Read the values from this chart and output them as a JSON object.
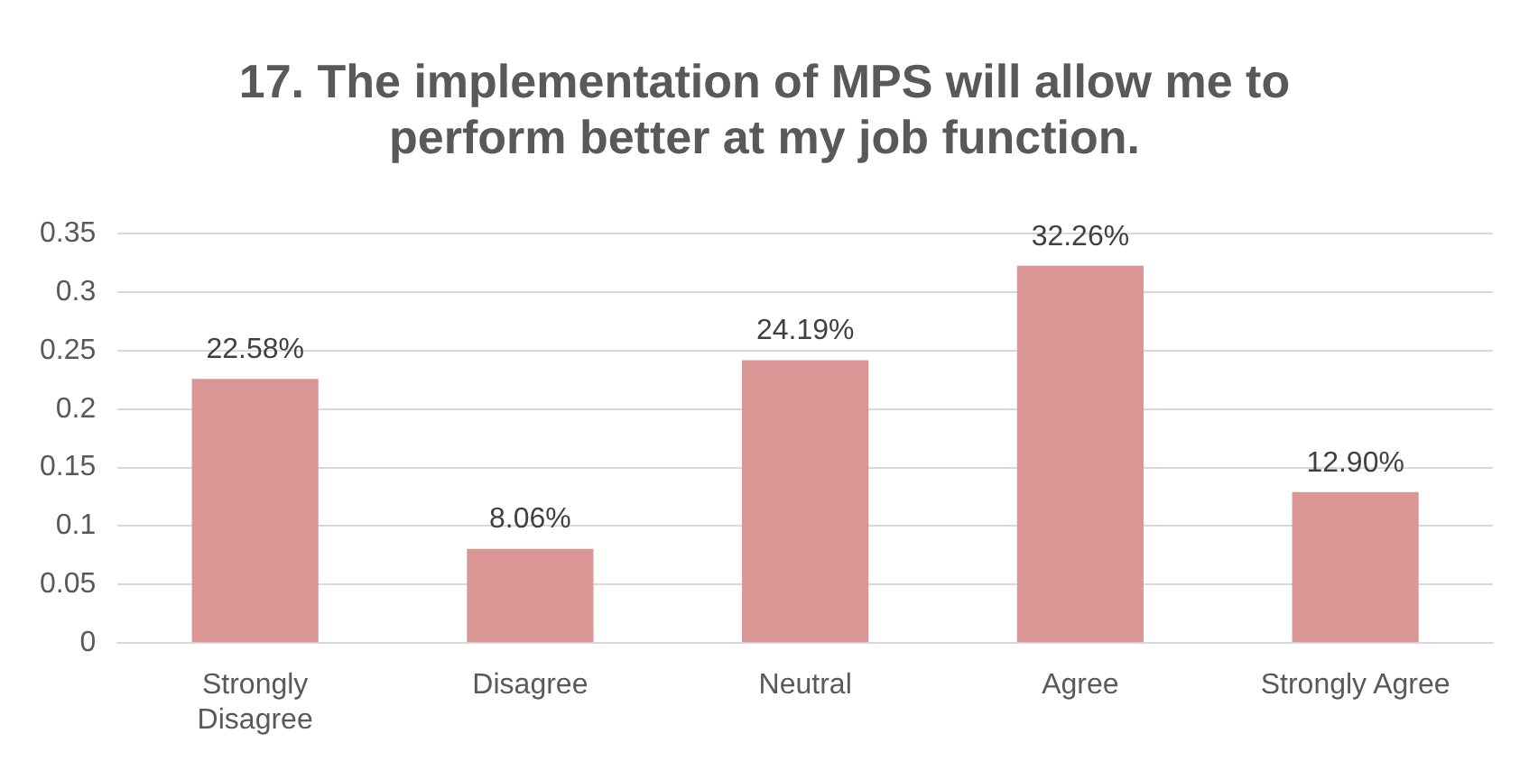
{
  "chart_data": {
    "type": "bar",
    "title": "17. The implementation of MPS will allow me to perform better at my job function.",
    "categories": [
      "Strongly Disagree",
      "Disagree",
      "Neutral",
      "Agree",
      "Strongly Agree"
    ],
    "values": [
      0.2258,
      0.0806,
      0.2419,
      0.3226,
      0.129
    ],
    "value_labels": [
      "22.58%",
      "8.06%",
      "24.19%",
      "32.26%",
      "12.90%"
    ],
    "color": "#d99694",
    "ylim": [
      0,
      0.35
    ],
    "yticks": [
      0,
      0.05,
      0.1,
      0.15,
      0.2,
      0.25,
      0.3,
      0.35
    ],
    "grid": "y",
    "legend": false
  }
}
